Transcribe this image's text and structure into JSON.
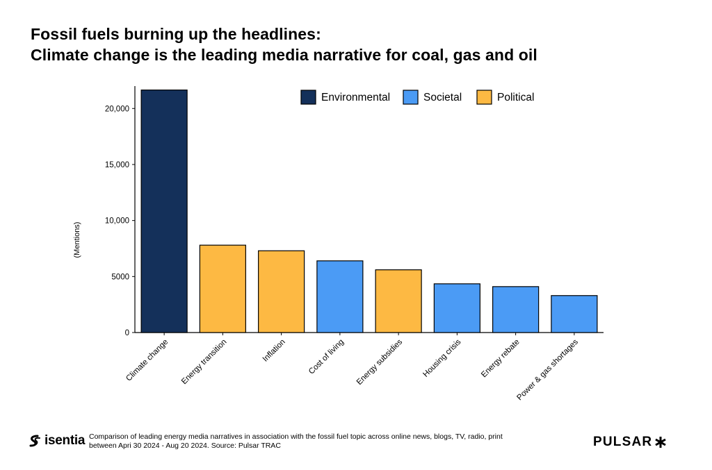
{
  "header": {
    "title_line1": "Fossil fuels burning up the headlines:",
    "title_line2": "Climate change is the leading media narrative for coal, gas and oil"
  },
  "chart_data": {
    "type": "bar",
    "ylabel": "(Mentions)",
    "ylim": [
      0,
      22000
    ],
    "yticks": [
      0,
      5000,
      10000,
      15000,
      20000
    ],
    "ytick_labels": [
      "0",
      "5000",
      "10,000",
      "15,000",
      "20,000"
    ],
    "categories": [
      "Climate change",
      "Energy transition",
      "Inflation",
      "Cost of living",
      "Energy subsidies",
      "Housing crisis",
      "Energy rebate",
      "Power & gas shortages"
    ],
    "values": [
      21650,
      7800,
      7300,
      6400,
      5600,
      4350,
      4100,
      3300
    ],
    "bar_groups": [
      "Environmental",
      "Political",
      "Political",
      "Societal",
      "Political",
      "Societal",
      "Societal",
      "Societal"
    ],
    "legend": [
      {
        "name": "Environmental",
        "color": "#14305a"
      },
      {
        "name": "Societal",
        "color": "#4b9bf5"
      },
      {
        "name": "Political",
        "color": "#fdb943"
      }
    ],
    "legend_position": "top-right",
    "grid": false
  },
  "footer": {
    "note_line1": "Comparison of leading energy media narratives in association with the fossil fuel topic across online news, blogs, TV, radio, print",
    "note_line2": "between Apri 30 2024 - Aug 20 2024. Source: Pulsar TRAC",
    "brand_left": "isentia",
    "brand_left_icon": "isentia-s-logo-icon",
    "brand_right": "PULSAR",
    "brand_right_icon": "asterisk-logo-icon"
  }
}
